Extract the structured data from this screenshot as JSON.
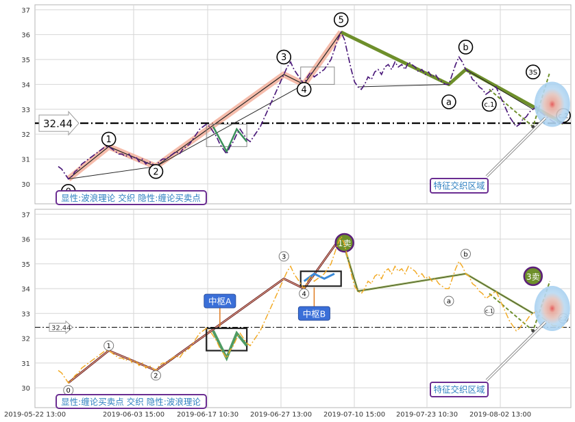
{
  "chart_data": {
    "type": "line",
    "x_ticks": [
      "2019-05-22 13:00",
      "2019-06-03 15:00",
      "2019-06-17 10:30",
      "2019-06-27 13:00",
      "2019-07-10 15:00",
      "2019-07-23 10:30",
      "2019-08-02 13:00"
    ],
    "y_ticks": [
      "30",
      "31",
      "32",
      "33",
      "34",
      "35",
      "36",
      "37"
    ],
    "ylim": [
      29.2,
      37.2
    ],
    "price_line": 32.44,
    "price_label": "32.44",
    "panels": [
      {
        "caption": "显性:波浪理论 交织 隐性:缠论买卖点",
        "zone_label": "特征交织区域",
        "wave_labels": [
          {
            "text": "0",
            "i": 3,
            "y": 29.7
          },
          {
            "text": "1",
            "i": 15,
            "y": 31.8
          },
          {
            "text": "2",
            "i": 29,
            "y": 30.5
          },
          {
            "text": "3",
            "i": 67,
            "y": 35.1
          },
          {
            "text": "4",
            "i": 73,
            "y": 33.8
          },
          {
            "text": "5",
            "i": 84,
            "y": 36.6
          },
          {
            "text": "a",
            "i": 116,
            "y": 33.3
          },
          {
            "text": "b",
            "i": 121,
            "y": 35.5
          },
          {
            "text": "c.1",
            "i": 128,
            "y": 33.2
          },
          {
            "text": "3S",
            "i": 141,
            "y": 34.5
          },
          {
            "text": "c.2",
            "i": 150,
            "y": 32.75
          }
        ]
      },
      {
        "caption": "显性:缠论买卖点 交织 隐性:波浪理论",
        "zone_label": "特征交织区域",
        "zhongshu": [
          {
            "text": "中枢A",
            "i": 48,
            "y": 33.5
          },
          {
            "text": "中枢B",
            "i": 76,
            "y": 33.0
          }
        ],
        "signals": [
          {
            "text": "1卖",
            "i": 85,
            "y": 35.85
          },
          {
            "text": "3卖",
            "i": 141,
            "y": 34.5
          }
        ],
        "wave_labels": [
          {
            "text": "0",
            "i": 3,
            "y": 29.9
          },
          {
            "text": "1",
            "i": 15,
            "y": 31.7
          },
          {
            "text": "2",
            "i": 29,
            "y": 30.5
          },
          {
            "text": "3",
            "i": 67,
            "y": 35.3
          },
          {
            "text": "4",
            "i": 73,
            "y": 33.8
          },
          {
            "text": "a",
            "i": 116,
            "y": 33.5
          },
          {
            "text": "b",
            "i": 121,
            "y": 35.4
          },
          {
            "text": "c.1",
            "i": 128,
            "y": 33.1
          },
          {
            "text": "c.2",
            "i": 150,
            "y": 32.8
          }
        ]
      }
    ],
    "series": [
      {
        "values": [
          30.7,
          30.6,
          30.4,
          30.2,
          30.3,
          30.5,
          30.6,
          30.8,
          30.9,
          31.0,
          31.1,
          31.2,
          31.3,
          31.4,
          31.5,
          31.5,
          31.4,
          31.3,
          31.2,
          31.2,
          31.1,
          31.2,
          31.0,
          31.1,
          30.9,
          31.0,
          30.8,
          30.9,
          30.8,
          30.7,
          30.9,
          31.0,
          31.0,
          31.1,
          31.2,
          31.3,
          31.2,
          31.4,
          31.5,
          31.6,
          31.8,
          32.0,
          32.2,
          32.3,
          32.4,
          32.3,
          32.1,
          31.9,
          31.6,
          31.4,
          31.2,
          31.5,
          31.7,
          32.0,
          32.2,
          32.0,
          31.8,
          31.7,
          31.9,
          32.1,
          32.3,
          32.6,
          32.9,
          33.2,
          33.5,
          33.8,
          34.1,
          34.4,
          34.7,
          34.9,
          34.6,
          34.4,
          34.2,
          34.0,
          34.3,
          34.5,
          34.3,
          34.4,
          34.5,
          34.6,
          34.8,
          35.0,
          35.4,
          35.8,
          36.1,
          35.8,
          35.2,
          34.6,
          34.1,
          33.9,
          33.8,
          34.0,
          34.3,
          34.2,
          34.5,
          34.6,
          34.4,
          34.7,
          34.8,
          34.6,
          34.9,
          34.7,
          34.8,
          34.6,
          34.9,
          34.8,
          34.7,
          34.5,
          34.6,
          34.4,
          34.5,
          34.3,
          34.4,
          34.2,
          34.1,
          34.0,
          34.0,
          34.4,
          34.8,
          35.1,
          34.9,
          34.6,
          34.5,
          34.2,
          34.1,
          33.9,
          33.8,
          33.6,
          33.7,
          33.8,
          33.9,
          33.6,
          33.3,
          33.0,
          32.7,
          32.5,
          32.3,
          32.4,
          32.6,
          32.7,
          32.9,
          33.0,
          33.1,
          32.9,
          32.8,
          32.7,
          32.6,
          32.5,
          32.5,
          32.45,
          32.44
        ]
      }
    ]
  }
}
